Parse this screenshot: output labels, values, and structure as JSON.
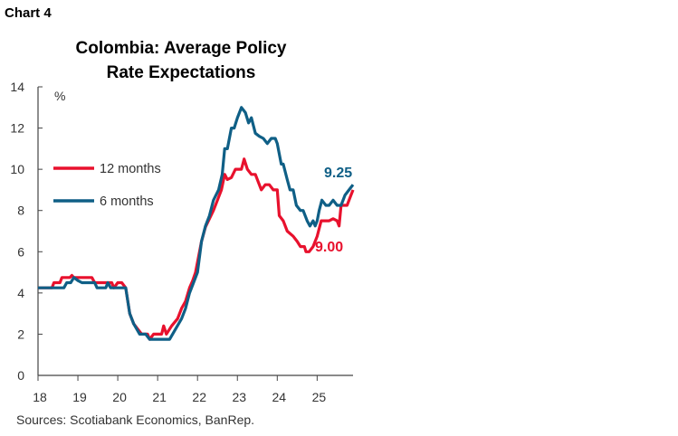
{
  "chart_label": "Chart 4",
  "source": "Sources: Scotiabank Economics, BanRep.",
  "chart_data": {
    "type": "line",
    "title": [
      "Colombia: Average Policy",
      "Rate Expectations"
    ],
    "ylabel": "%",
    "xlabel": "",
    "xlim": [
      2018,
      2025.9
    ],
    "ylim": [
      0,
      14
    ],
    "yticks": [
      0,
      2,
      4,
      6,
      8,
      10,
      12,
      14
    ],
    "xticks": [
      2018,
      2019,
      2020,
      2021,
      2022,
      2023,
      2024,
      2025
    ],
    "xtick_labels": [
      "18",
      "19",
      "20",
      "21",
      "22",
      "23",
      "24",
      "25"
    ],
    "grid": false,
    "legend": "left",
    "series": [
      {
        "name": "12 months",
        "color": "#e8112d",
        "end_label": "9.00",
        "points": [
          [
            2018.0,
            4.25
          ],
          [
            2018.35,
            4.25
          ],
          [
            2018.4,
            4.5
          ],
          [
            2018.55,
            4.5
          ],
          [
            2018.6,
            4.75
          ],
          [
            2018.8,
            4.75
          ],
          [
            2018.85,
            4.85
          ],
          [
            2018.9,
            4.75
          ],
          [
            2019.35,
            4.75
          ],
          [
            2019.42,
            4.5
          ],
          [
            2019.85,
            4.5
          ],
          [
            2019.9,
            4.25
          ],
          [
            2020.0,
            4.5
          ],
          [
            2020.1,
            4.5
          ],
          [
            2020.2,
            4.25
          ],
          [
            2020.3,
            3.0
          ],
          [
            2020.4,
            2.5
          ],
          [
            2020.5,
            2.25
          ],
          [
            2020.6,
            2.0
          ],
          [
            2020.75,
            2.0
          ],
          [
            2020.8,
            1.75
          ],
          [
            2020.9,
            2.0
          ],
          [
            2021.1,
            2.0
          ],
          [
            2021.15,
            2.4
          ],
          [
            2021.22,
            2.0
          ],
          [
            2021.35,
            2.4
          ],
          [
            2021.5,
            2.75
          ],
          [
            2021.6,
            3.25
          ],
          [
            2021.7,
            3.6
          ],
          [
            2021.8,
            4.25
          ],
          [
            2021.88,
            4.6
          ],
          [
            2021.95,
            5.0
          ],
          [
            2022.0,
            5.5
          ],
          [
            2022.1,
            6.5
          ],
          [
            2022.2,
            7.2
          ],
          [
            2022.3,
            7.6
          ],
          [
            2022.4,
            8.0
          ],
          [
            2022.5,
            8.5
          ],
          [
            2022.6,
            9.0
          ],
          [
            2022.68,
            9.75
          ],
          [
            2022.75,
            9.5
          ],
          [
            2022.85,
            9.6
          ],
          [
            2022.95,
            10.0
          ],
          [
            2023.1,
            10.0
          ],
          [
            2023.17,
            10.5
          ],
          [
            2023.25,
            10.0
          ],
          [
            2023.35,
            9.75
          ],
          [
            2023.45,
            9.75
          ],
          [
            2023.6,
            9.0
          ],
          [
            2023.7,
            9.25
          ],
          [
            2023.8,
            9.25
          ],
          [
            2023.9,
            9.0
          ],
          [
            2024.0,
            9.0
          ],
          [
            2024.05,
            7.75
          ],
          [
            2024.15,
            7.5
          ],
          [
            2024.25,
            7.0
          ],
          [
            2024.4,
            6.75
          ],
          [
            2024.5,
            6.5
          ],
          [
            2024.58,
            6.25
          ],
          [
            2024.68,
            6.25
          ],
          [
            2024.72,
            6.0
          ],
          [
            2024.8,
            6.0
          ],
          [
            2024.9,
            6.25
          ],
          [
            2025.0,
            6.75
          ],
          [
            2025.1,
            7.5
          ],
          [
            2025.3,
            7.5
          ],
          [
            2025.4,
            7.6
          ],
          [
            2025.5,
            7.5
          ],
          [
            2025.55,
            7.25
          ],
          [
            2025.6,
            8.25
          ],
          [
            2025.75,
            8.25
          ],
          [
            2025.85,
            8.75
          ],
          [
            2025.9,
            9.0
          ]
        ]
      },
      {
        "name": "6 months",
        "color": "#0f5f86",
        "end_label": "9.25",
        "points": [
          [
            2018.0,
            4.25
          ],
          [
            2018.65,
            4.25
          ],
          [
            2018.72,
            4.5
          ],
          [
            2018.82,
            4.5
          ],
          [
            2018.9,
            4.75
          ],
          [
            2019.0,
            4.6
          ],
          [
            2019.1,
            4.5
          ],
          [
            2019.42,
            4.5
          ],
          [
            2019.48,
            4.25
          ],
          [
            2019.7,
            4.25
          ],
          [
            2019.75,
            4.5
          ],
          [
            2019.82,
            4.25
          ],
          [
            2020.2,
            4.25
          ],
          [
            2020.3,
            3.0
          ],
          [
            2020.4,
            2.5
          ],
          [
            2020.55,
            2.0
          ],
          [
            2020.7,
            2.0
          ],
          [
            2020.8,
            1.75
          ],
          [
            2021.3,
            1.75
          ],
          [
            2021.45,
            2.25
          ],
          [
            2021.6,
            2.75
          ],
          [
            2021.7,
            3.25
          ],
          [
            2021.8,
            4.0
          ],
          [
            2021.9,
            4.5
          ],
          [
            2022.0,
            5.0
          ],
          [
            2022.1,
            6.5
          ],
          [
            2022.2,
            7.25
          ],
          [
            2022.3,
            7.75
          ],
          [
            2022.4,
            8.5
          ],
          [
            2022.53,
            9.0
          ],
          [
            2022.62,
            9.75
          ],
          [
            2022.68,
            11.0
          ],
          [
            2022.75,
            11.0
          ],
          [
            2022.85,
            12.0
          ],
          [
            2022.92,
            12.0
          ],
          [
            2023.0,
            12.5
          ],
          [
            2023.1,
            13.0
          ],
          [
            2023.2,
            12.75
          ],
          [
            2023.28,
            12.25
          ],
          [
            2023.35,
            12.5
          ],
          [
            2023.45,
            11.75
          ],
          [
            2023.55,
            11.6
          ],
          [
            2023.65,
            11.5
          ],
          [
            2023.75,
            11.25
          ],
          [
            2023.85,
            11.5
          ],
          [
            2023.95,
            11.5
          ],
          [
            2024.0,
            11.25
          ],
          [
            2024.1,
            10.25
          ],
          [
            2024.15,
            10.25
          ],
          [
            2024.25,
            9.5
          ],
          [
            2024.32,
            9.0
          ],
          [
            2024.4,
            9.0
          ],
          [
            2024.48,
            8.25
          ],
          [
            2024.58,
            8.0
          ],
          [
            2024.65,
            8.0
          ],
          [
            2024.75,
            7.5
          ],
          [
            2024.82,
            7.25
          ],
          [
            2024.9,
            7.5
          ],
          [
            2024.95,
            7.25
          ],
          [
            2025.0,
            7.5
          ],
          [
            2025.05,
            8.0
          ],
          [
            2025.12,
            8.5
          ],
          [
            2025.22,
            8.25
          ],
          [
            2025.3,
            8.25
          ],
          [
            2025.4,
            8.5
          ],
          [
            2025.5,
            8.25
          ],
          [
            2025.6,
            8.25
          ],
          [
            2025.7,
            8.75
          ],
          [
            2025.8,
            9.0
          ],
          [
            2025.9,
            9.25
          ]
        ]
      }
    ]
  }
}
